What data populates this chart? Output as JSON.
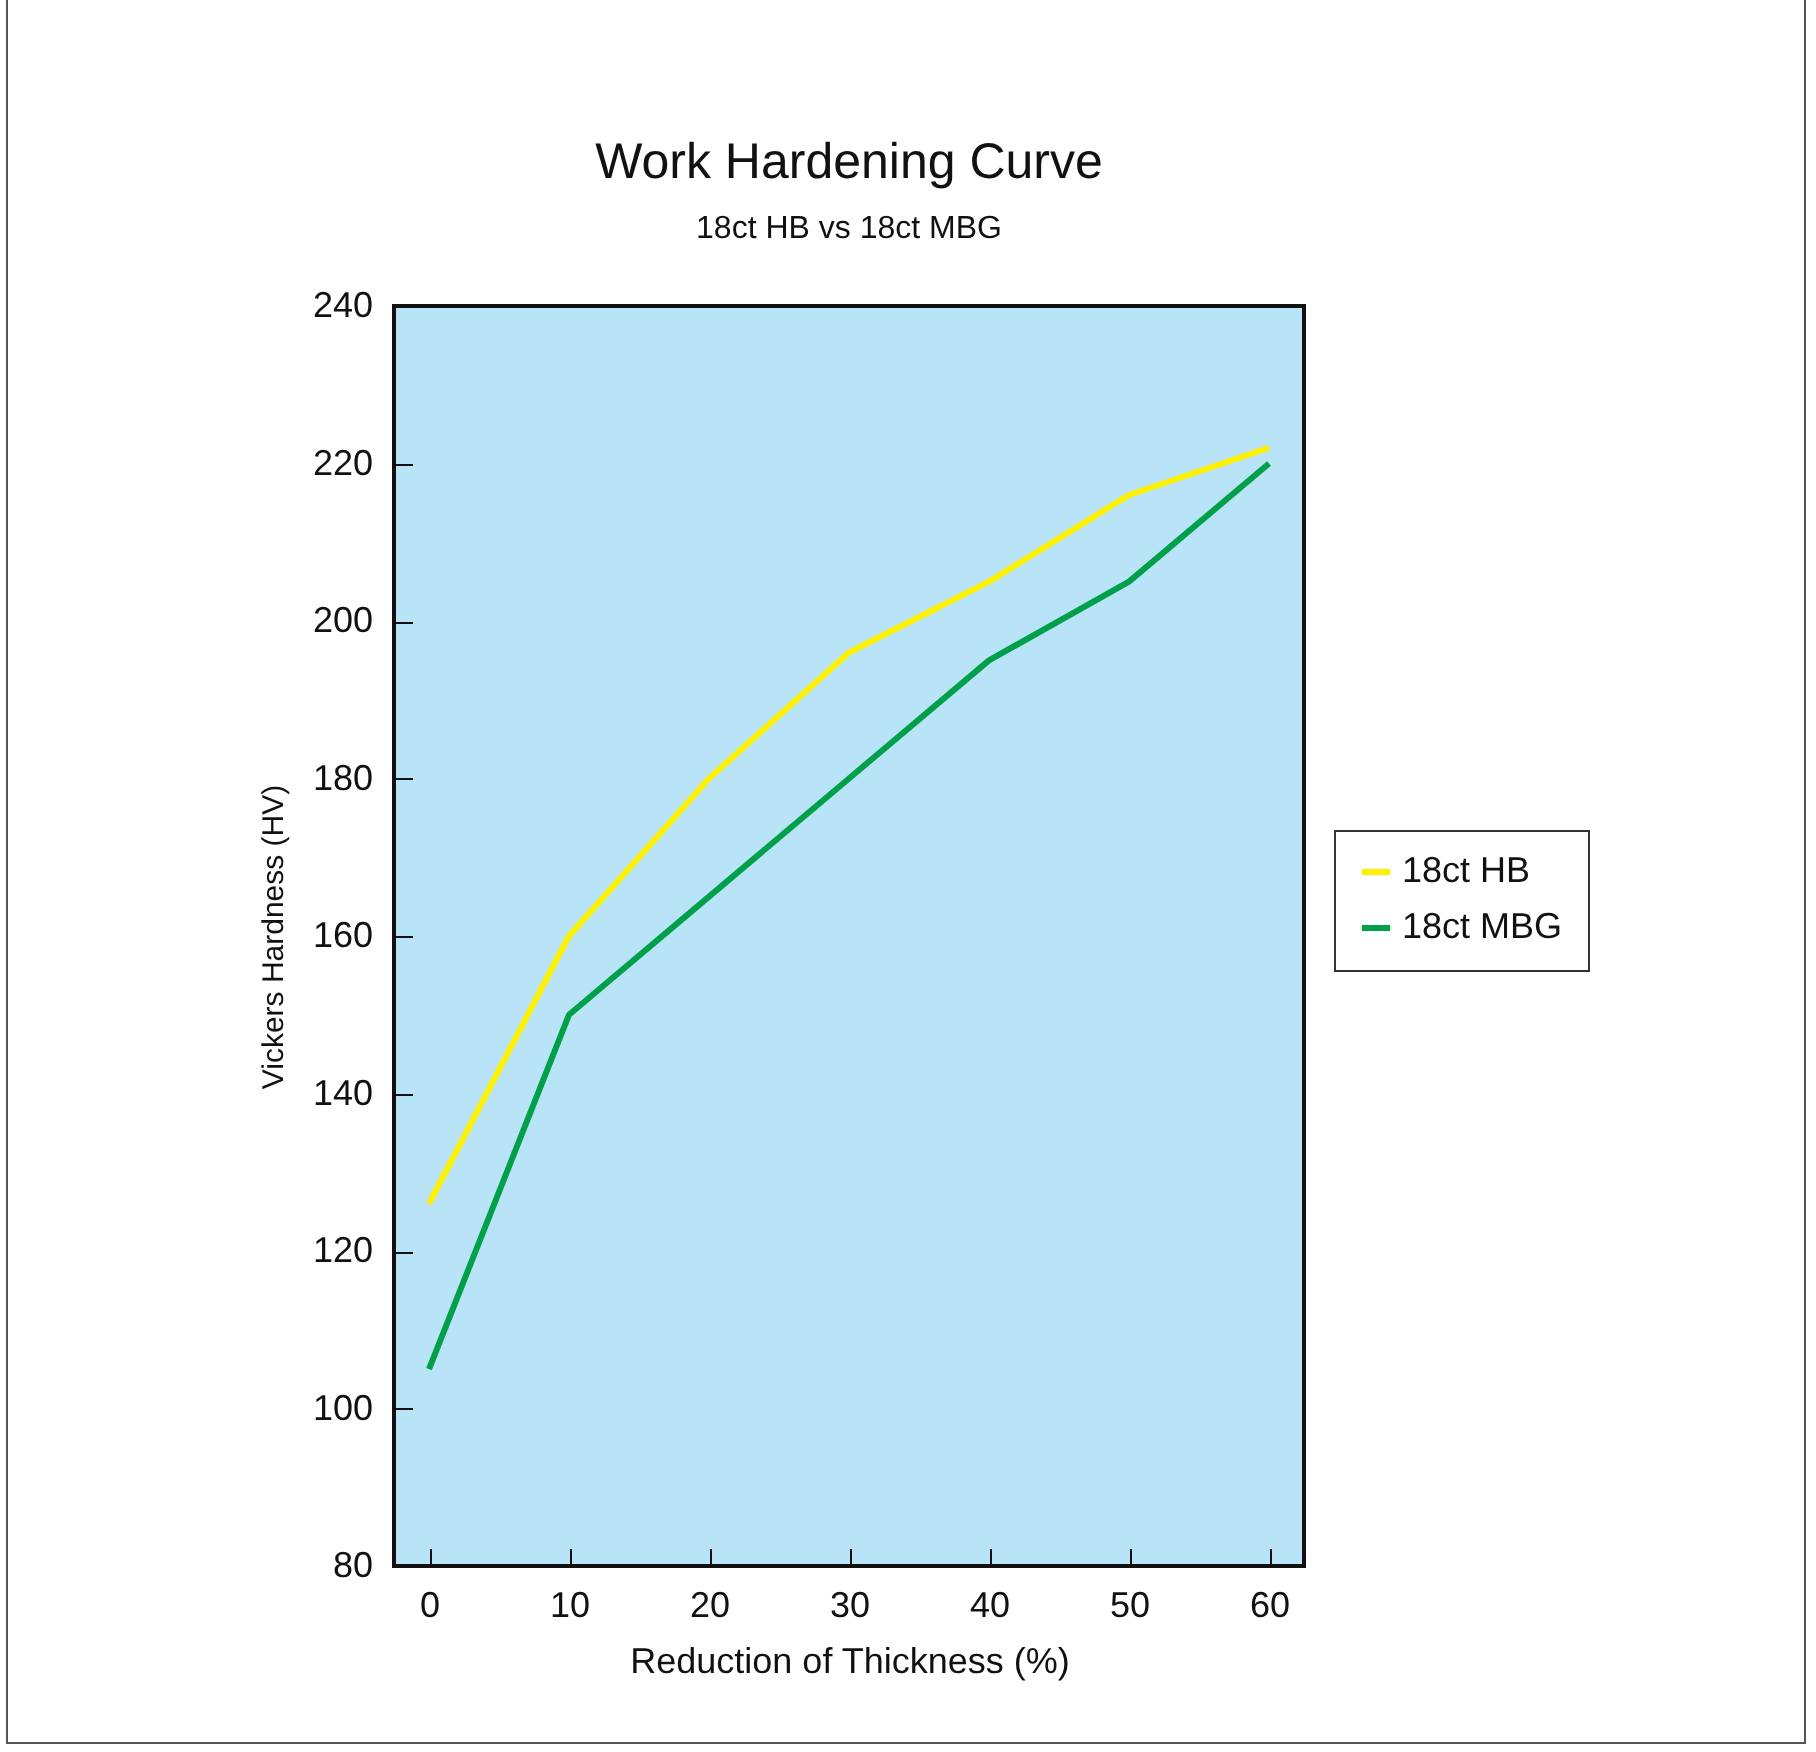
{
  "chart_data": {
    "type": "line",
    "title": "Work Hardening Curve",
    "subtitle": "18ct HB vs 18ct MBG",
    "xlabel": "Reduction of Thickness (%)",
    "ylabel": "Vickers Hardness (HV)",
    "x": [
      0,
      10,
      20,
      30,
      40,
      50,
      60
    ],
    "series": [
      {
        "name": "18ct HB",
        "color": "#fff200",
        "values": [
          126,
          160,
          180,
          196,
          205,
          216,
          222
        ]
      },
      {
        "name": "18ct MBG",
        "color": "#00a04a",
        "values": [
          105,
          150,
          165,
          180,
          195,
          205,
          220
        ]
      }
    ],
    "xlim": [
      -2.5,
      62.5
    ],
    "xticks": [
      0,
      10,
      20,
      30,
      40,
      50,
      60
    ],
    "ylim": [
      80,
      240
    ],
    "yticks": [
      80,
      100,
      120,
      140,
      160,
      180,
      200,
      220,
      240
    ],
    "legend": "right"
  }
}
